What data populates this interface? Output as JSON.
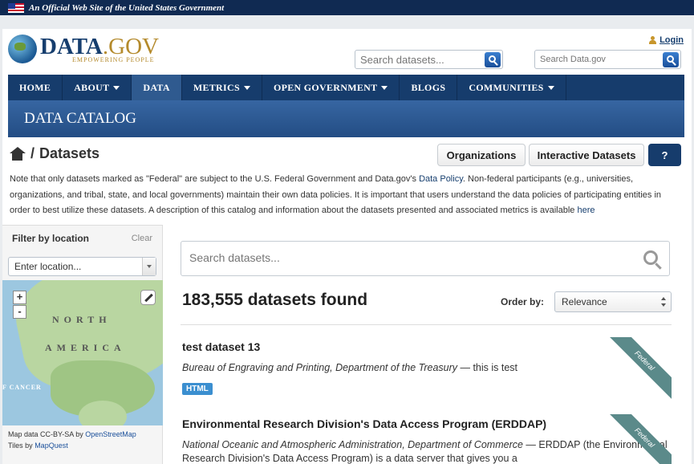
{
  "gov_banner": {
    "text": "An Official Web Site of the United States Government"
  },
  "header": {
    "logo_main": "DATA",
    "logo_dot": ".",
    "logo_gov": "GOV",
    "logo_sub": "EMPOWERING PEOPLE",
    "login_label": "Login",
    "dataset_search_placeholder": "Search datasets...",
    "site_search_placeholder": "Search Data.gov"
  },
  "nav": {
    "items": [
      {
        "label": "HOME",
        "dropdown": false,
        "active": false
      },
      {
        "label": "ABOUT",
        "dropdown": true,
        "active": false
      },
      {
        "label": "DATA",
        "dropdown": false,
        "active": true
      },
      {
        "label": "METRICS",
        "dropdown": true,
        "active": false
      },
      {
        "label": "OPEN GOVERNMENT",
        "dropdown": true,
        "active": false
      },
      {
        "label": "BLOGS",
        "dropdown": false,
        "active": false
      },
      {
        "label": "COMMUNITIES",
        "dropdown": true,
        "active": false
      }
    ]
  },
  "catalog": {
    "title": "DATA CATALOG"
  },
  "breadcrumb": {
    "separator": "/",
    "current": "Datasets"
  },
  "actions": {
    "organizations": "Organizations",
    "interactive": "Interactive Datasets",
    "help": "?"
  },
  "notice": {
    "before_link": "Note that only datasets marked as \"Federal\" are subject to the U.S. Federal Government and Data.gov's ",
    "policy_link": "Data Policy",
    "middle": ". Non-federal participants (e.g., universities, organizations, and tribal, state, and local governments) maintain their own data policies. It is important that users understand the data policies of participating entities in order to best utilize these datasets. A description of this catalog and information about the datasets presented and associated metrics is available ",
    "here_link": "here"
  },
  "sidebar": {
    "filter_title": "Filter by location",
    "clear_label": "Clear",
    "location_placeholder": "Enter location...",
    "map": {
      "zoom_in": "+",
      "zoom_out": "-",
      "label_north": "NORTH",
      "label_america": "AMERICA",
      "label_cancer": "F CANCER"
    },
    "credit_prefix": "Map data CC-BY-SA by ",
    "credit_osm": "OpenStreetMap",
    "credit_tiles_prefix": "Tiles by ",
    "credit_mapquest": "MapQuest"
  },
  "main": {
    "search_placeholder": "Search datasets...",
    "count_text": "183,555 datasets found",
    "order_label": "Order by:",
    "order_value": "Relevance",
    "datasets": [
      {
        "title": "test dataset 13",
        "org": "Bureau of Engraving and Printing, Department of the Treasury",
        "desc": " — this is test",
        "format": "HTML",
        "ribbon": "Federal"
      },
      {
        "title": "Environmental Research Division's Data Access Program (ERDDAP)",
        "org": "National Oceanic and Atmospheric Administration, Department of Commerce",
        "desc": " — ERDDAP (the Environmental Research Division's Data Access Program) is a data server that gives you a",
        "ribbon": "Federal"
      }
    ]
  }
}
